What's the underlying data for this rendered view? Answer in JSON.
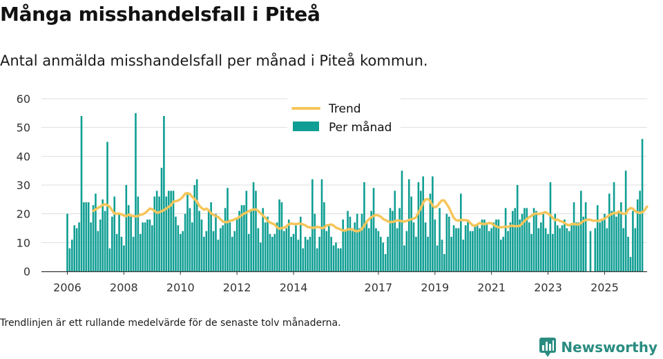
{
  "title": "Många misshandelsfall i Piteå",
  "subtitle": "Antal anmälda misshandelsfall per månad i Piteå kommun.",
  "footnote": "Trendlinjen är ett rullande medelvärde för de senaste tolv månaderna.",
  "brand": {
    "name": "Newsworthy",
    "icon": "bar-chart-logo-icon",
    "color": "#2a8c80"
  },
  "colors": {
    "bars": "#0f9e93",
    "trend": "#f6c55a",
    "grid": "#dddddd",
    "axis": "#333333"
  },
  "chart_data": {
    "type": "bar",
    "x_start": "2006-01",
    "x_end": "2025-09",
    "ylim": [
      0,
      60
    ],
    "yticks": [
      0,
      10,
      20,
      30,
      40,
      50,
      60
    ],
    "xticks": [
      "2006",
      "2008",
      "2010",
      "2012",
      "2014",
      "2017",
      "2019",
      "2021",
      "2023",
      "2025"
    ],
    "xtick_years": [
      2006,
      2008,
      2010,
      2012,
      2014,
      2017,
      2019,
      2021,
      2023,
      2025
    ],
    "legend": {
      "placement": "top-center",
      "trend_label": "Trend",
      "bars_label": "Per månad"
    },
    "series": [
      {
        "name": "Per månad",
        "type": "bar",
        "values": [
          20,
          8,
          11,
          16,
          15,
          17,
          54,
          24,
          24,
          24,
          17,
          23,
          27,
          14,
          18,
          25,
          21,
          45,
          8,
          19,
          26,
          13,
          20,
          12,
          9,
          30,
          23,
          19,
          12,
          55,
          26,
          13,
          17,
          17,
          18,
          18,
          16,
          26,
          28,
          26,
          36,
          54,
          26,
          28,
          28,
          28,
          19,
          16,
          13,
          14,
          20,
          27,
          22,
          17,
          30,
          32,
          21,
          18,
          12,
          14,
          21,
          24,
          14,
          20,
          11,
          15,
          16,
          22,
          29,
          17,
          12,
          14,
          18,
          21,
          23,
          23,
          28,
          13,
          21,
          31,
          28,
          15,
          10,
          22,
          17,
          19,
          13,
          12,
          13,
          17,
          25,
          24,
          14,
          15,
          18,
          12,
          13,
          16,
          11,
          19,
          8,
          12,
          11,
          12,
          32,
          20,
          8,
          12,
          32,
          24,
          14,
          16,
          12,
          9,
          10,
          8,
          8,
          18,
          14,
          21,
          19,
          14,
          17,
          20,
          15,
          20,
          31,
          17,
          15,
          21,
          29,
          15,
          14,
          12,
          10,
          6,
          12,
          22,
          21,
          28,
          15,
          22,
          35,
          9,
          14,
          32,
          26,
          17,
          12,
          31,
          28,
          33,
          17,
          12,
          27,
          33,
          18,
          9,
          22,
          11,
          6,
          20,
          19,
          12,
          16,
          15,
          15,
          27,
          11,
          16,
          18,
          14,
          14,
          16,
          16,
          15,
          18,
          18,
          17,
          14,
          15,
          17,
          18,
          18,
          11,
          12,
          22,
          14,
          17,
          21,
          22,
          30,
          18,
          20,
          22,
          22,
          17,
          13,
          22,
          21,
          15,
          17,
          20,
          15,
          13,
          31,
          13,
          20,
          16,
          15,
          16,
          18,
          15,
          14,
          16,
          24,
          17,
          17,
          28,
          19,
          24,
          0,
          14,
          0,
          15,
          23,
          17,
          18,
          20,
          15,
          27,
          21,
          31,
          19,
          21,
          24,
          15,
          35,
          12,
          5,
          21,
          15,
          25,
          28,
          46
        ]
      },
      {
        "name": "Trend",
        "type": "line",
        "start": "2006-12",
        "values": [
          21.0,
          21.5,
          22.1,
          22.4,
          23.1,
          23.3,
          23.0,
          22.4,
          21.2,
          20.1,
          20.0,
          20.1,
          19.8,
          19.4,
          19.2,
          19.7,
          19.4,
          19.2,
          19.1,
          19.2,
          19.7,
          19.8,
          20.3,
          21.0,
          21.8,
          21.6,
          21.0,
          20.4,
          20.5,
          20.9,
          21.3,
          21.8,
          22.4,
          23.0,
          24.2,
          24.4,
          24.6,
          25.1,
          25.9,
          27.0,
          27.2,
          26.9,
          25.9,
          25.1,
          24.3,
          22.8,
          22.0,
          21.4,
          21.8,
          21.2,
          20.2,
          19.6,
          19.2,
          18.9,
          18.1,
          17.3,
          17.1,
          17.1,
          17.6,
          17.7,
          18.1,
          18.4,
          18.9,
          19.5,
          20.1,
          20.4,
          20.9,
          21.3,
          21.5,
          21.5,
          21.0,
          20.2,
          19.4,
          18.6,
          17.5,
          17.0,
          16.6,
          16.3,
          15.3,
          14.8,
          15.0,
          15.2,
          15.6,
          16.4,
          16.6,
          16.5,
          16.4,
          16.6,
          16.5,
          16.3,
          16.0,
          15.4,
          15.3,
          15.1,
          15.2,
          15.5,
          15.3,
          15.0,
          15.2,
          16.0,
          16.1,
          16.3,
          15.9,
          15.2,
          14.9,
          14.5,
          14.2,
          14.2,
          14.6,
          14.6,
          14.6,
          14.1,
          13.9,
          14.2,
          14.7,
          15.9,
          17.2,
          18.1,
          18.8,
          19.3,
          19.6,
          19.4,
          19.0,
          18.2,
          17.8,
          17.4,
          17.1,
          17.2,
          17.4,
          17.7,
          17.6,
          17.4,
          17.3,
          17.5,
          17.9,
          18.1,
          18.3,
          18.8,
          20.5,
          21.9,
          23.8,
          25.0,
          25.1,
          24.4,
          22.8,
          22.2,
          22.7,
          23.8,
          24.7,
          24.6,
          23.4,
          22.1,
          20.3,
          18.6,
          17.8,
          17.6,
          17.9,
          17.8,
          17.8,
          17.6,
          16.8,
          16.0,
          15.8,
          16.3,
          16.8,
          16.5,
          16.4,
          16.6,
          16.8,
          16.7,
          16.1,
          15.6,
          15.3,
          15.3,
          15.4,
          15.5,
          15.4,
          15.8,
          15.8,
          15.7,
          15.7,
          15.8,
          16.6,
          17.5,
          18.2,
          18.8,
          19.3,
          19.9,
          20.1,
          19.9,
          20.1,
          20.3,
          20.6,
          20.0,
          19.5,
          18.6,
          17.8,
          18.0,
          17.5,
          17.3,
          16.8,
          16.2,
          16.0,
          16.4,
          16.5,
          16.3,
          16.3,
          16.8,
          17.5,
          17.8,
          18.0,
          17.9,
          17.6,
          17.6,
          17.5,
          17.7,
          18.0,
          18.3,
          18.9,
          19.5,
          19.9,
          20.3,
          20.1,
          20.8,
          20.3,
          20.0,
          20.0,
          21.4,
          22.0,
          21.8,
          20.9,
          20.5,
          20.3,
          20.5,
          21.3,
          22.5
        ]
      }
    ]
  }
}
